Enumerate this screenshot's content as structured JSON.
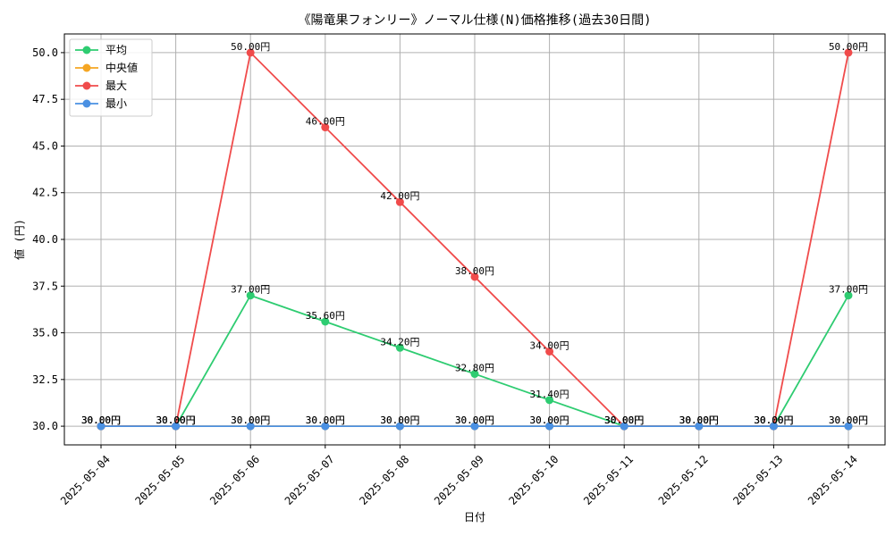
{
  "chart_data": {
    "type": "line",
    "title": "《陽竜果フォンリー》ノーマル仕様(N)価格推移(過去30日間)",
    "xlabel": "日付",
    "ylabel": "値 (円)",
    "ylim": [
      29.0,
      51.0
    ],
    "yticks": [
      30.0,
      32.5,
      35.0,
      37.5,
      40.0,
      42.5,
      45.0,
      47.5,
      50.0
    ],
    "ytick_labels": [
      "30.0",
      "32.5",
      "35.0",
      "37.5",
      "40.0",
      "42.5",
      "45.0",
      "47.5",
      "50.0"
    ],
    "grid": true,
    "legend_position": "top-left",
    "categories": [
      "2025-05-04",
      "2025-05-05",
      "2025-05-06",
      "2025-05-07",
      "2025-05-08",
      "2025-05-09",
      "2025-05-10",
      "2025-05-11",
      "2025-05-12",
      "2025-05-13",
      "2025-05-14"
    ],
    "series": [
      {
        "name": "平均",
        "color": "#2ecc71",
        "values": [
          30.0,
          30.0,
          37.0,
          35.6,
          34.2,
          32.8,
          31.4,
          30.0,
          30.0,
          30.0,
          37.0
        ],
        "labels": [
          "30.00円",
          "30.00円",
          "37.00円",
          "35.60円",
          "34.20円",
          "32.80円",
          "31.40円",
          "30.00円",
          "30.00円",
          "30.00円",
          "37.00円"
        ]
      },
      {
        "name": "中央値",
        "color": "#f5a623",
        "values": [
          30.0,
          30.0,
          30.0,
          30.0,
          30.0,
          30.0,
          30.0,
          30.0,
          30.0,
          30.0,
          30.0
        ],
        "labels": [
          "30.00円",
          "30.00円",
          "30.00円",
          "30.00円",
          "30.00円",
          "30.00円",
          "30.00円",
          "30.00円",
          "30.00円",
          "30.00円",
          "30.00円"
        ]
      },
      {
        "name": "最大",
        "color": "#f04b4b",
        "values": [
          30.0,
          30.0,
          50.0,
          46.0,
          42.0,
          38.0,
          34.0,
          30.0,
          30.0,
          30.0,
          50.0
        ],
        "labels": [
          "30.00円",
          "30.00円",
          "50.00円",
          "46.00円",
          "42.00円",
          "38.00円",
          "34.00円",
          "30.00円",
          "30.00円",
          "30.00円",
          "50.00円"
        ]
      },
      {
        "name": "最小",
        "color": "#4a90e2",
        "values": [
          30.0,
          30.0,
          30.0,
          30.0,
          30.0,
          30.0,
          30.0,
          30.0,
          30.0,
          30.0,
          30.0
        ],
        "labels": [
          "30.00円",
          "30.00円",
          "30.00円",
          "30.00円",
          "30.00円",
          "30.00円",
          "30.00円",
          "30.00円",
          "30.00円",
          "30.00円",
          "30.00円"
        ]
      }
    ]
  }
}
